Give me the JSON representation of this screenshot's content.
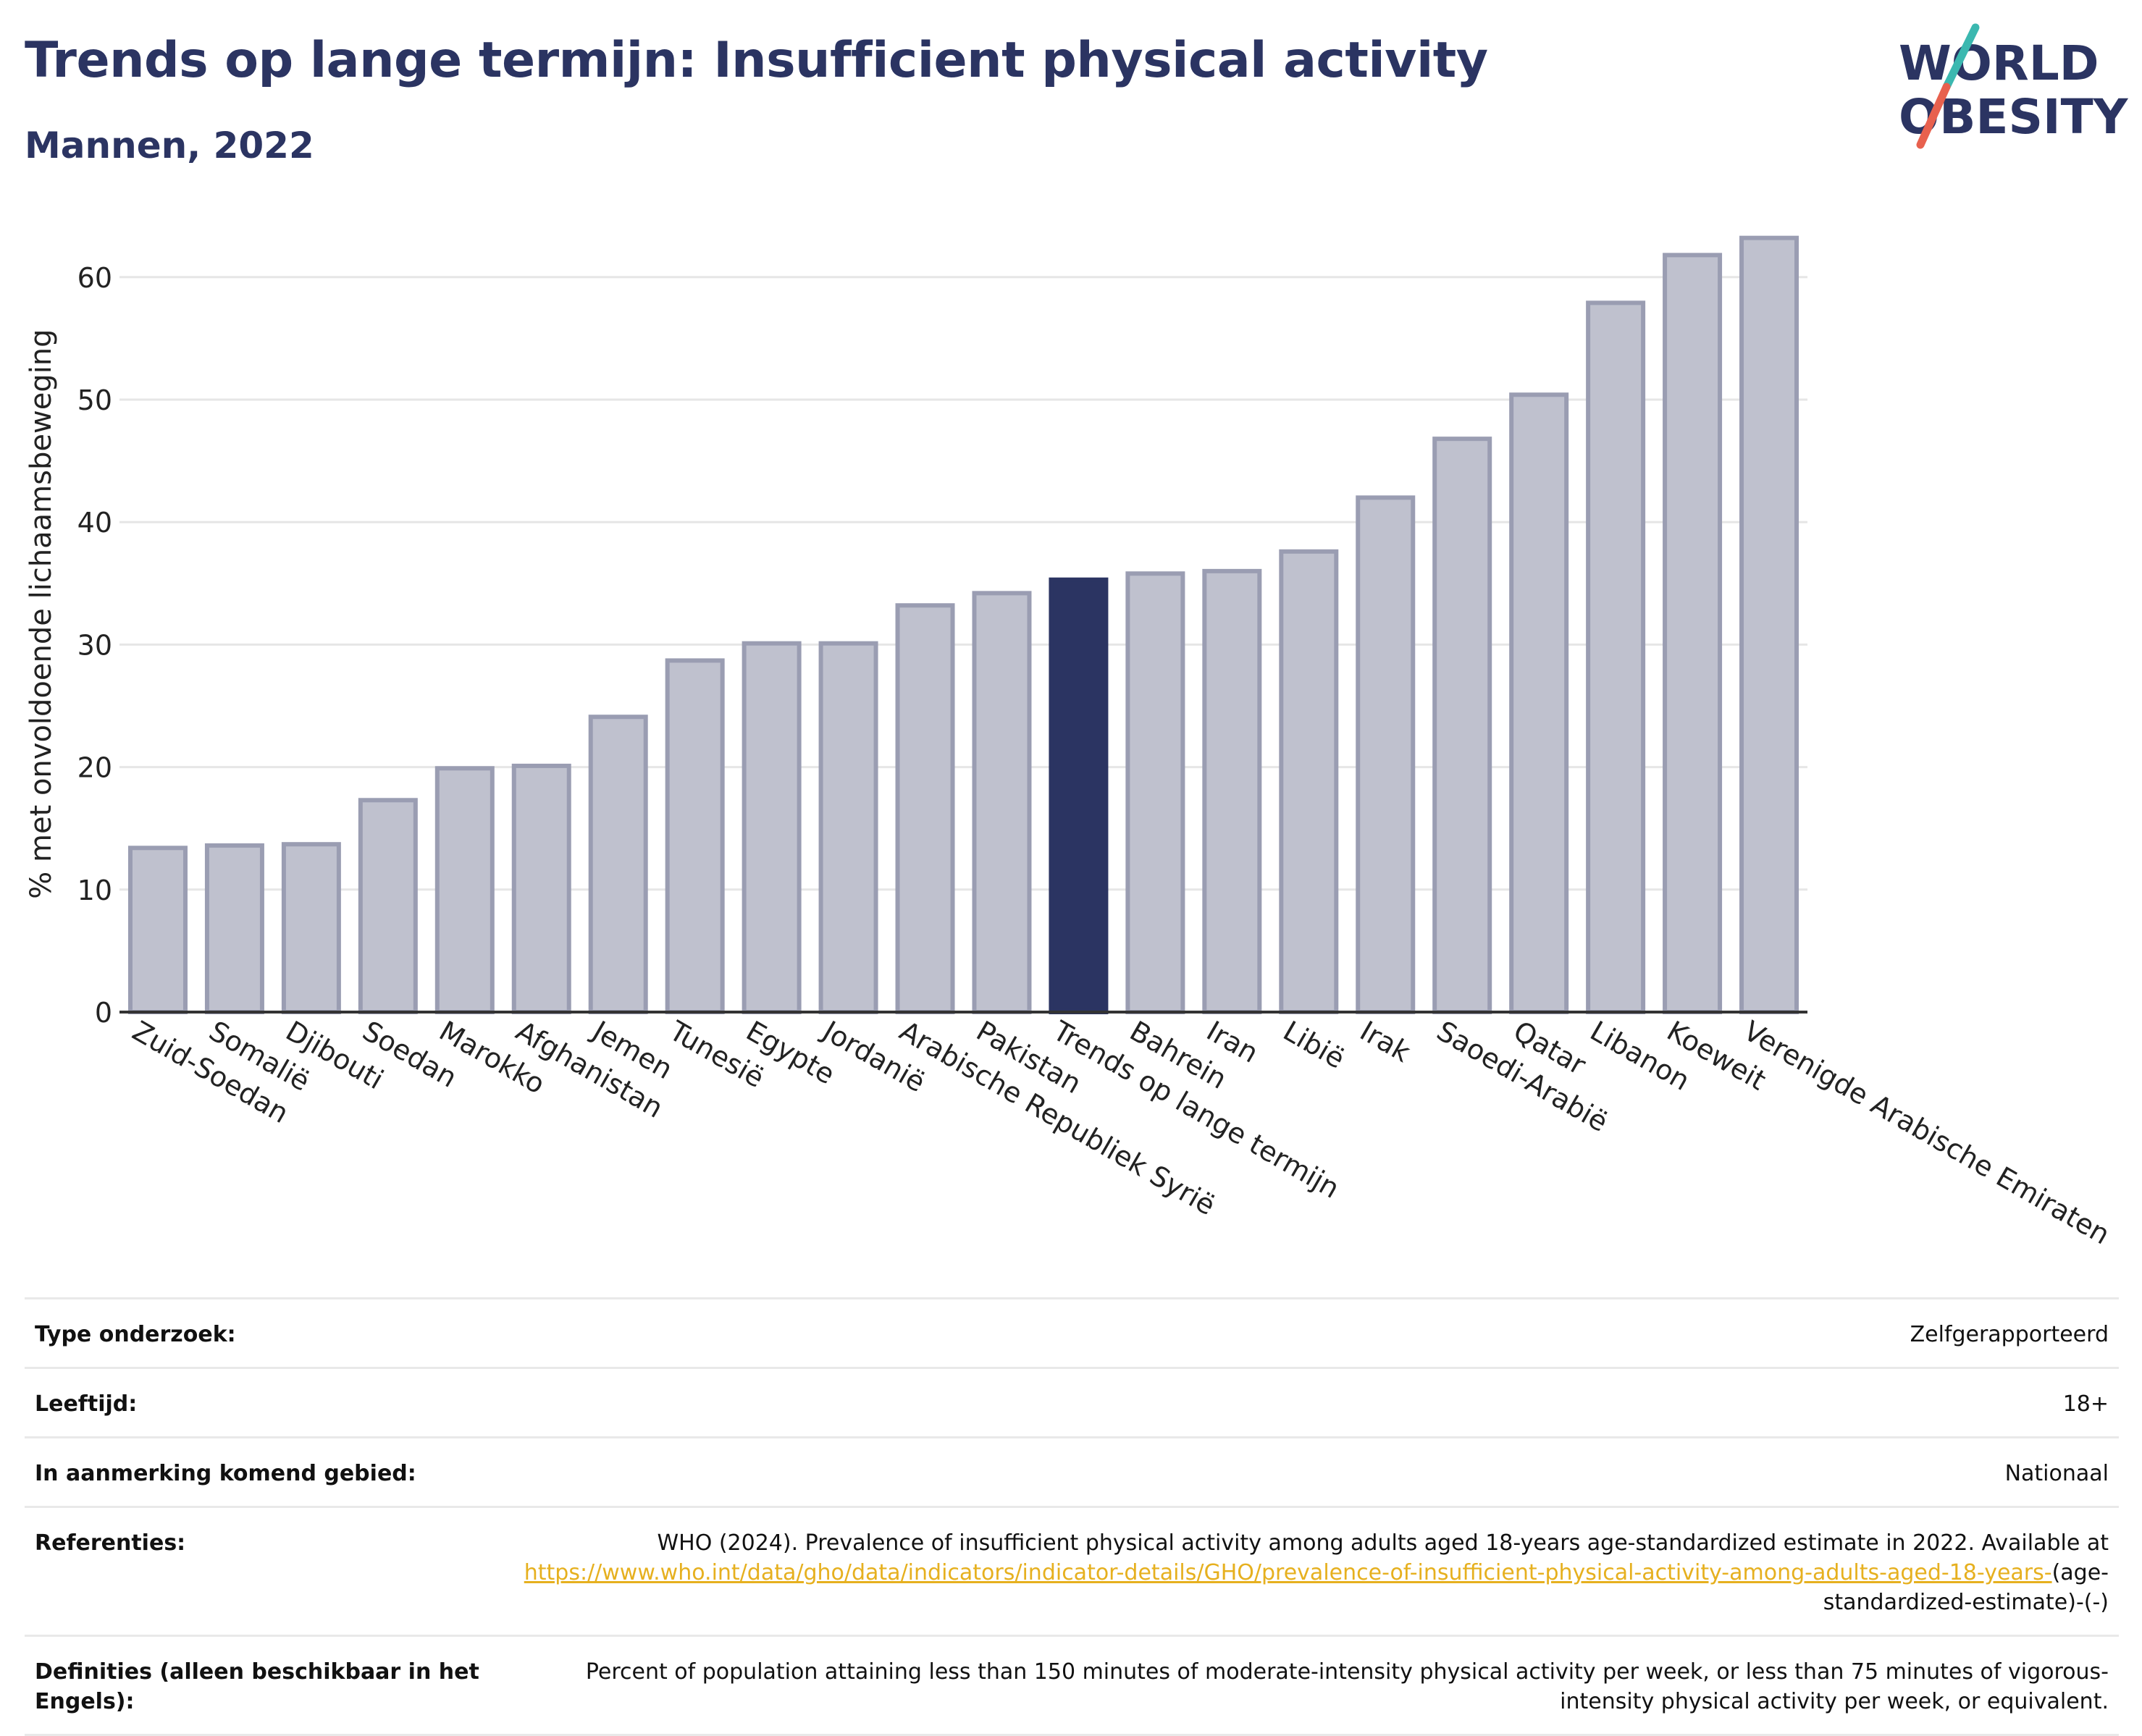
{
  "header": {
    "title": "Trends op lange termijn: Insufficient physical activity",
    "subtitle": "Mannen, 2022"
  },
  "logo": {
    "line1": "WORLD",
    "line2": "OBESITY",
    "icon": "world-obesity-logo"
  },
  "colors": {
    "highlight_bar": "#2b3462",
    "bar_fill": "#bfc1ce",
    "bar_stroke": "#9a9db2",
    "title": "#2b3462",
    "link": "#e6b01f",
    "logo_teal": "#3bb8b0",
    "logo_coral": "#e8614e"
  },
  "chart_data": {
    "type": "bar",
    "ylabel": "% met onvoldoende lichaamsbeweging",
    "xlabel": "",
    "ylim": [
      0,
      65
    ],
    "yticks": [
      0,
      10,
      20,
      30,
      40,
      50,
      60
    ],
    "grid": true,
    "highlight": "Trends op lange termijn",
    "categories": [
      "Zuid-Soedan",
      "Somalië",
      "Djibouti",
      "Soedan",
      "Marokko",
      "Afghanistan",
      "Jemen",
      "Tunesië",
      "Egypte",
      "Jordanië",
      "Arabische Republiek Syrië",
      "Pakistan",
      "Trends op lange termijn",
      "Bahrein",
      "Iran",
      "Libië",
      "Irak",
      "Saoedi-Arabië",
      "Qatar",
      "Libanon",
      "Koeweit",
      "Verenigde Arabische Emiraten"
    ],
    "values": [
      13.4,
      13.6,
      13.7,
      17.3,
      19.9,
      20.1,
      24.1,
      28.7,
      30.1,
      30.1,
      33.2,
      34.2,
      35.3,
      35.8,
      36.0,
      37.6,
      42.0,
      46.8,
      50.4,
      57.9,
      61.8,
      63.2
    ]
  },
  "info": {
    "survey_type_label": "Type onderzoek:",
    "survey_type_value": "Zelfgerapporteerd",
    "age_label": "Leeftijd:",
    "age_value": "18+",
    "area_label": "In aanmerking komend gebied:",
    "area_value": "Nationaal",
    "references_label": "Referenties:",
    "references_text": "WHO (2024). Prevalence of insufficient physical activity among adults aged 18-years age-standardized estimate in 2022. Available at",
    "references_link": "https://www.who.int/data/gho/data/indicators/indicator-details/GHO/prevalence-of-insufficient-physical-activity-among-adults-aged-18-years-",
    "references_suffix": "(age-standardized-estimate)-(-)",
    "definitions_label": "Definities (alleen beschikbaar in het Engels):",
    "definitions_value": "Percent of population attaining less than 150 minutes of moderate-intensity physical activity per week, or less than 75 minutes of vigorous-intensity physical activity per week, or equivalent."
  }
}
